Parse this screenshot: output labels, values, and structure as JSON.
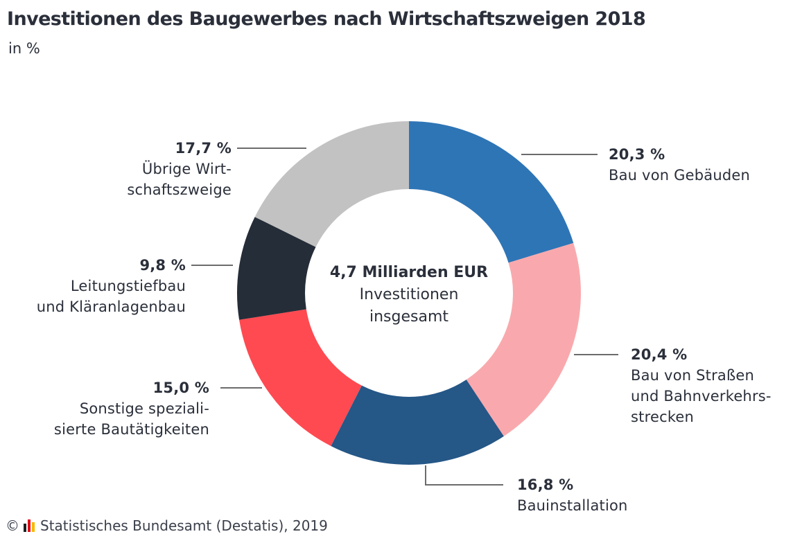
{
  "title": "Investitionen des Baugewerbes nach Wirtschaftszweigen 2018",
  "subtitle": "in %",
  "center": {
    "total": "4,7 Milliarden EUR",
    "line1": "Investitionen",
    "line2": "insgesamt"
  },
  "source": {
    "copyright": "©",
    "text": "Statistisches Bundesamt (Destatis), 2019",
    "logo_colors": [
      "#1f1f1f",
      "#e30613",
      "#f5b800"
    ]
  },
  "chart_data": {
    "type": "pie",
    "donut": true,
    "title": "Investitionen des Baugewerbes nach Wirtschaftszweigen 2018",
    "subtitle": "in %",
    "unit": "%",
    "slices": [
      {
        "label_lines": [
          "Bau von Gebäuden"
        ],
        "value": 20.3,
        "value_label": "20,3 %",
        "color": "#2e75b6"
      },
      {
        "label_lines": [
          "Bau von Straßen",
          "und Bahnverkehrs-",
          "strecken"
        ],
        "value": 20.4,
        "value_label": "20,4 %",
        "color": "#f9a9ad"
      },
      {
        "label_lines": [
          "Bauinstallation"
        ],
        "value": 16.8,
        "value_label": "16,8 %",
        "color": "#255787"
      },
      {
        "label_lines": [
          "Sonstige speziali-",
          "sierte Bautätigkeiten"
        ],
        "value": 15.0,
        "value_label": "15,0 %",
        "color": "#ff4a51"
      },
      {
        "label_lines": [
          "Leitungstiefbau",
          "und Kläranlagenbau"
        ],
        "value": 9.8,
        "value_label": "9,8 %",
        "color": "#252d38"
      },
      {
        "label_lines": [
          "Übrige Wirt-",
          "schaftszweige"
        ],
        "value": 17.7,
        "value_label": "17,7 %",
        "color": "#c2c2c2"
      }
    ]
  }
}
